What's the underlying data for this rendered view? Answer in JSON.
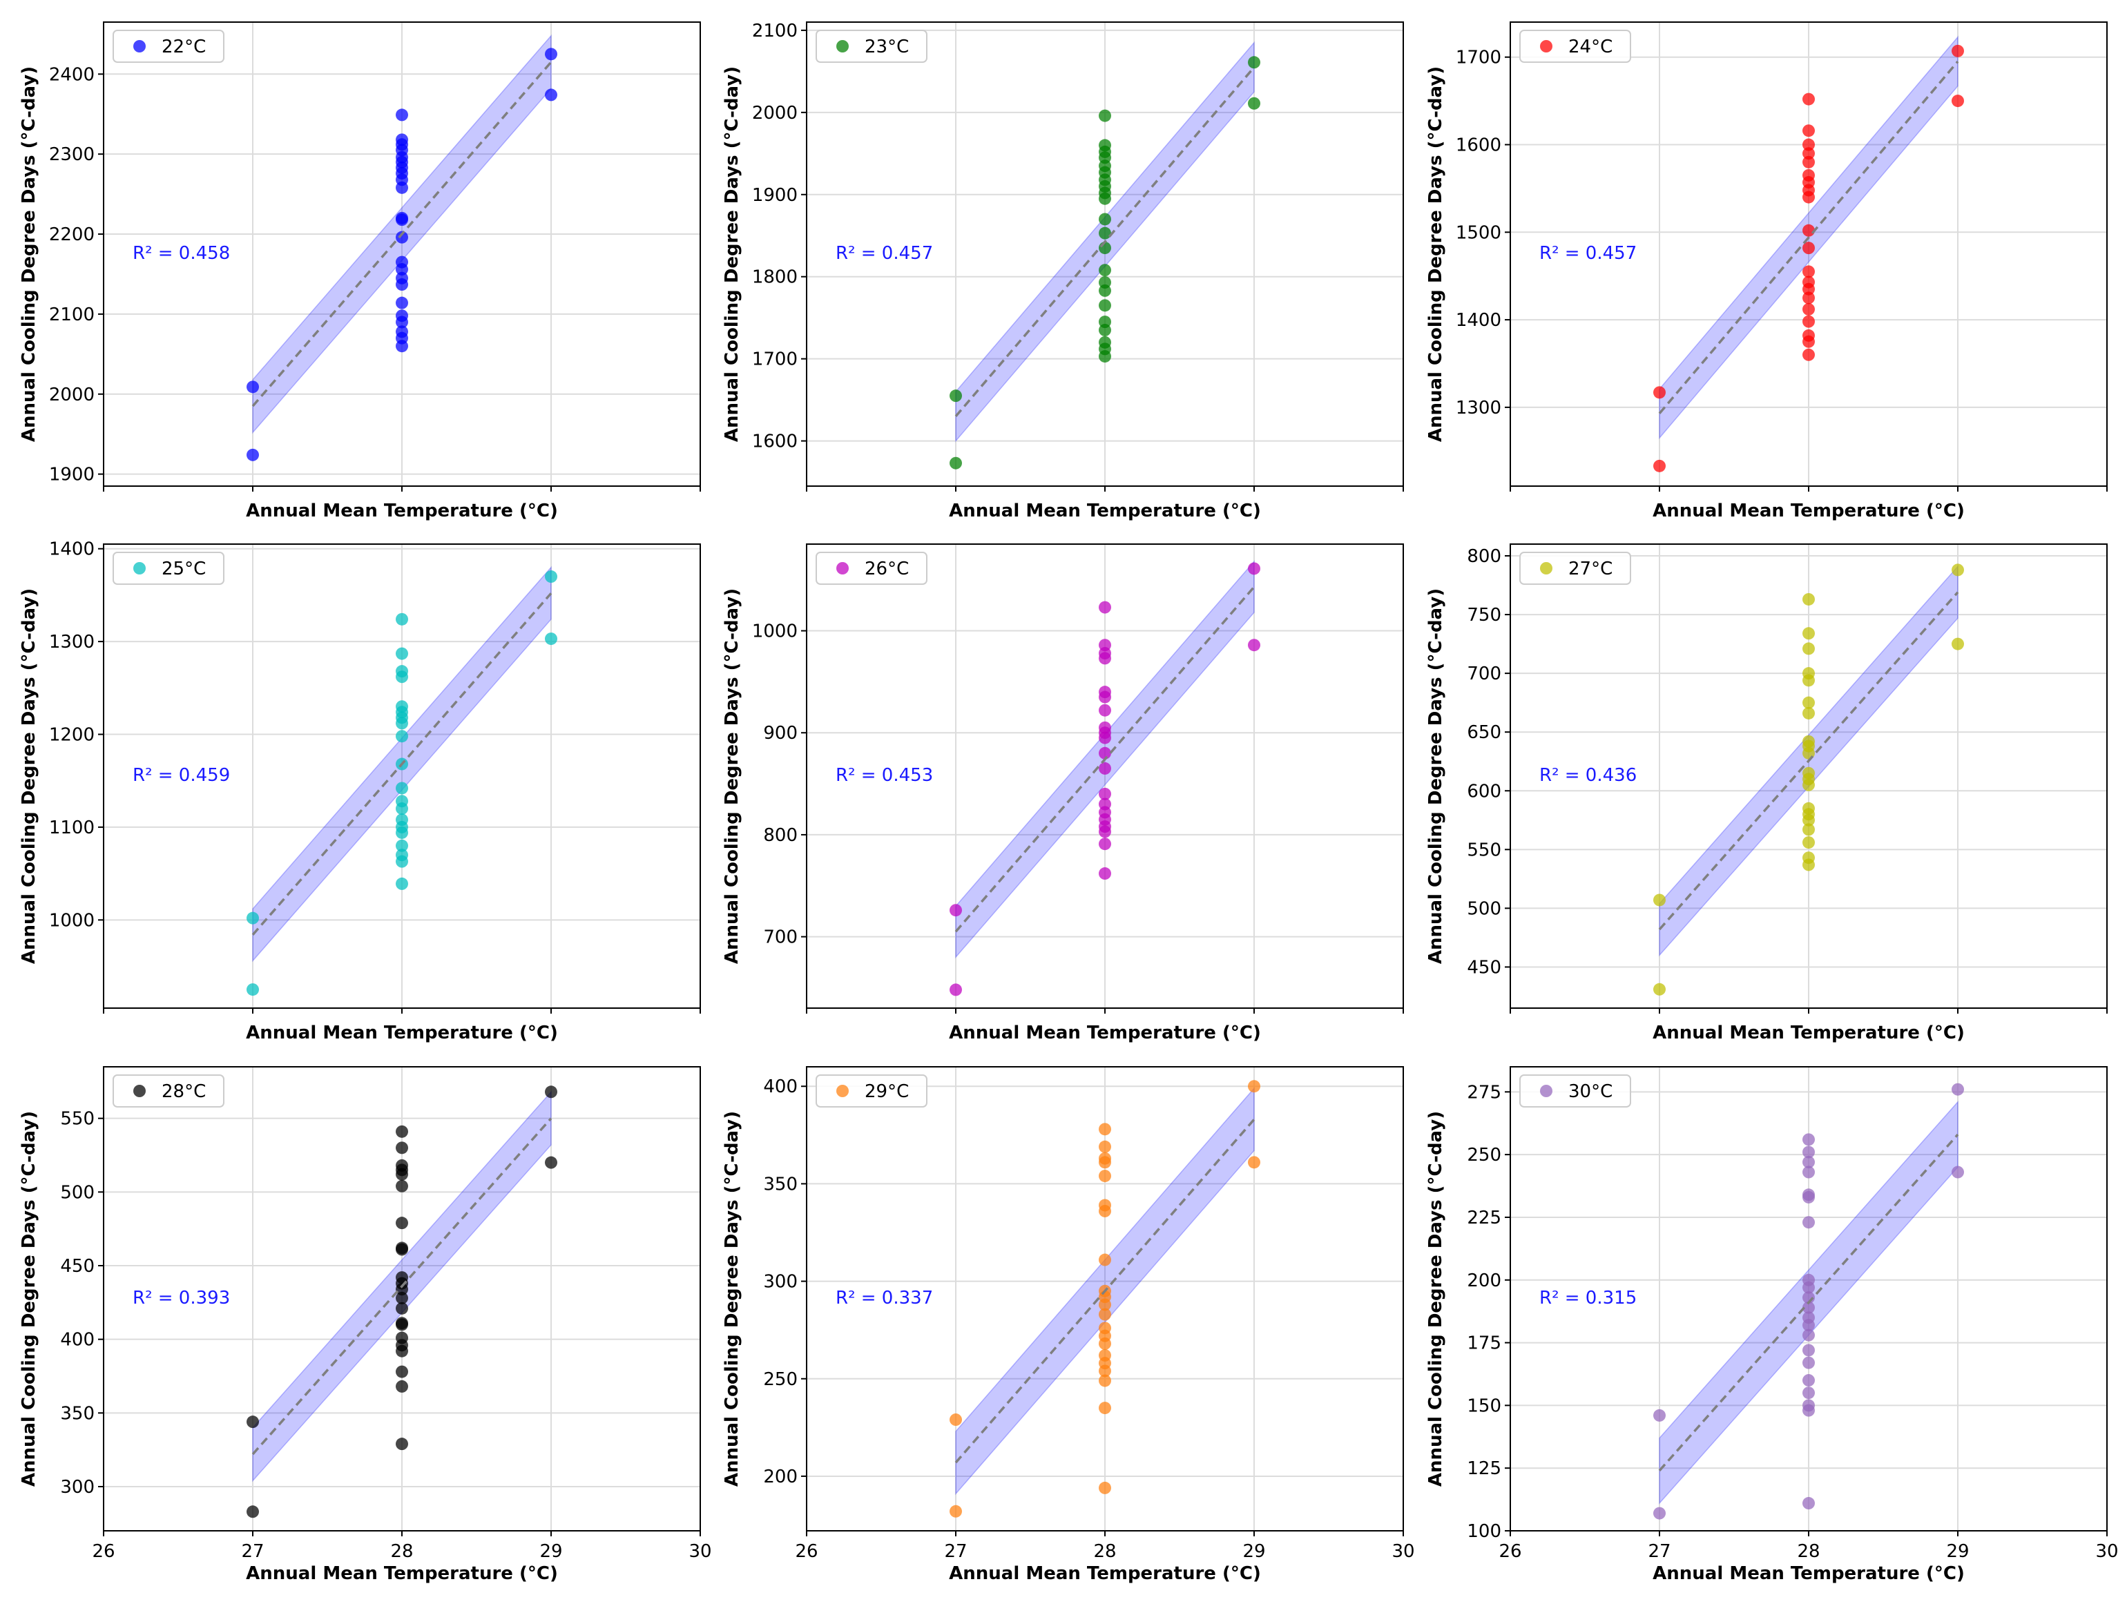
{
  "figure": {
    "layout": "3x3 grid of scatter plots with linear fit and confidence band"
  },
  "chart_data": [
    {
      "type": "scatter",
      "legend": "22°C",
      "color": "#0000ff",
      "r2": "R² = 0.458",
      "xlabel": "Annual Mean Temperature (°C)",
      "ylabel": "Annual Cooling Degree Days (°C-day)",
      "xlim": [
        26,
        30
      ],
      "ylim": [
        1885,
        2465
      ],
      "xticks": [],
      "yticks": [
        1900,
        2000,
        2100,
        2200,
        2300,
        2400
      ],
      "fit": {
        "x": [
          27,
          29
        ],
        "y": [
          1985,
          2415
        ]
      },
      "band_halfwidth": 33,
      "points": [
        [
          27,
          2009
        ],
        [
          27,
          1924
        ],
        [
          29,
          2425
        ],
        [
          29,
          2374
        ],
        [
          28,
          2349
        ],
        [
          28,
          2318
        ],
        [
          28,
          2312
        ],
        [
          28,
          2305
        ],
        [
          28,
          2296
        ],
        [
          28,
          2290
        ],
        [
          28,
          2283
        ],
        [
          28,
          2276
        ],
        [
          28,
          2268
        ],
        [
          28,
          2258
        ],
        [
          28,
          2220
        ],
        [
          28,
          2218
        ],
        [
          28,
          2196
        ],
        [
          28,
          2165
        ],
        [
          28,
          2156
        ],
        [
          28,
          2145
        ],
        [
          28,
          2137
        ],
        [
          28,
          2114
        ],
        [
          28,
          2098
        ],
        [
          28,
          2090
        ],
        [
          28,
          2078
        ],
        [
          28,
          2070
        ],
        [
          28,
          2060
        ]
      ]
    },
    {
      "type": "scatter",
      "legend": "23°C",
      "color": "#008000",
      "r2": "R² = 0.457",
      "xlabel": "Annual Mean Temperature (°C)",
      "ylabel": "Annual Cooling Degree Days (°C-day)",
      "xlim": [
        26,
        30
      ],
      "ylim": [
        1545,
        2110
      ],
      "xticks": [],
      "yticks": [
        1600,
        1700,
        1800,
        1900,
        2000,
        2100
      ],
      "fit": {
        "x": [
          27,
          29
        ],
        "y": [
          1630,
          2055
        ]
      },
      "band_halfwidth": 30,
      "points": [
        [
          27,
          1655
        ],
        [
          27,
          1573
        ],
        [
          29,
          2061
        ],
        [
          29,
          2011
        ],
        [
          28,
          1996
        ],
        [
          28,
          1960
        ],
        [
          28,
          1952
        ],
        [
          28,
          1945
        ],
        [
          28,
          1935
        ],
        [
          28,
          1927
        ],
        [
          28,
          1918
        ],
        [
          28,
          1910
        ],
        [
          28,
          1902
        ],
        [
          28,
          1895
        ],
        [
          28,
          1870
        ],
        [
          28,
          1853
        ],
        [
          28,
          1835
        ],
        [
          28,
          1808
        ],
        [
          28,
          1793
        ],
        [
          28,
          1783
        ],
        [
          28,
          1765
        ],
        [
          28,
          1745
        ],
        [
          28,
          1735
        ],
        [
          28,
          1720
        ],
        [
          28,
          1712
        ],
        [
          28,
          1703
        ]
      ]
    },
    {
      "type": "scatter",
      "legend": "24°C",
      "color": "#ff0000",
      "r2": "R² = 0.457",
      "xlabel": "Annual Mean Temperature (°C)",
      "ylabel": "Annual Cooling Degree Days (°C-day)",
      "xlim": [
        26,
        30
      ],
      "ylim": [
        1210,
        1740
      ],
      "xticks": [],
      "yticks": [
        1300,
        1400,
        1500,
        1600,
        1700
      ],
      "fit": {
        "x": [
          27,
          29
        ],
        "y": [
          1293,
          1695
        ]
      },
      "band_halfwidth": 28,
      "points": [
        [
          27,
          1317
        ],
        [
          27,
          1233
        ],
        [
          29,
          1707
        ],
        [
          29,
          1650
        ],
        [
          28,
          1652
        ],
        [
          28,
          1616
        ],
        [
          28,
          1600
        ],
        [
          28,
          1590
        ],
        [
          28,
          1580
        ],
        [
          28,
          1565
        ],
        [
          28,
          1557
        ],
        [
          28,
          1548
        ],
        [
          28,
          1540
        ],
        [
          28,
          1502
        ],
        [
          28,
          1482
        ],
        [
          28,
          1455
        ],
        [
          28,
          1443
        ],
        [
          28,
          1435
        ],
        [
          28,
          1425
        ],
        [
          28,
          1412
        ],
        [
          28,
          1398
        ],
        [
          28,
          1382
        ],
        [
          28,
          1375
        ],
        [
          28,
          1360
        ]
      ]
    },
    {
      "type": "scatter",
      "legend": "25°C",
      "color": "#00bfbf",
      "r2": "R² = 0.459",
      "xlabel": "Annual Mean Temperature (°C)",
      "ylabel": "Annual Cooling Degree Days (°C-day)",
      "xlim": [
        26,
        30
      ],
      "ylim": [
        905,
        1405
      ],
      "xticks": [],
      "yticks": [
        1000,
        1100,
        1200,
        1300,
        1400
      ],
      "fit": {
        "x": [
          27,
          29
        ],
        "y": [
          984,
          1352
        ]
      },
      "band_halfwidth": 28,
      "points": [
        [
          27,
          1002
        ],
        [
          27,
          925
        ],
        [
          29,
          1370
        ],
        [
          29,
          1303
        ],
        [
          28,
          1324
        ],
        [
          28,
          1287
        ],
        [
          28,
          1268
        ],
        [
          28,
          1262
        ],
        [
          28,
          1230
        ],
        [
          28,
          1224
        ],
        [
          28,
          1218
        ],
        [
          28,
          1212
        ],
        [
          28,
          1198
        ],
        [
          28,
          1168
        ],
        [
          28,
          1142
        ],
        [
          28,
          1128
        ],
        [
          28,
          1120
        ],
        [
          28,
          1108
        ],
        [
          28,
          1100
        ],
        [
          28,
          1094
        ],
        [
          28,
          1080
        ],
        [
          28,
          1070
        ],
        [
          28,
          1063
        ],
        [
          28,
          1039
        ]
      ]
    },
    {
      "type": "scatter",
      "legend": "26°C",
      "color": "#bf00bf",
      "r2": "R² = 0.453",
      "xlabel": "Annual Mean Temperature (°C)",
      "ylabel": "Annual Cooling Degree Days (°C-day)",
      "xlim": [
        26,
        30
      ],
      "ylim": [
        630,
        1085
      ],
      "xticks": [],
      "yticks": [
        700,
        800,
        900,
        1000
      ],
      "fit": {
        "x": [
          27,
          29
        ],
        "y": [
          705,
          1043
        ]
      },
      "band_halfwidth": 25,
      "points": [
        [
          27,
          726
        ],
        [
          27,
          648
        ],
        [
          29,
          1061
        ],
        [
          29,
          986
        ],
        [
          28,
          1023
        ],
        [
          28,
          986
        ],
        [
          28,
          978
        ],
        [
          28,
          973
        ],
        [
          28,
          940
        ],
        [
          28,
          935
        ],
        [
          28,
          922
        ],
        [
          28,
          905
        ],
        [
          28,
          900
        ],
        [
          28,
          895
        ],
        [
          28,
          880
        ],
        [
          28,
          865
        ],
        [
          28,
          840
        ],
        [
          28,
          830
        ],
        [
          28,
          822
        ],
        [
          28,
          815
        ],
        [
          28,
          808
        ],
        [
          28,
          803
        ],
        [
          28,
          791
        ],
        [
          28,
          762
        ]
      ]
    },
    {
      "type": "scatter",
      "legend": "27°C",
      "color": "#bfbf00",
      "r2": "R² = 0.436",
      "xlabel": "Annual Mean Temperature (°C)",
      "ylabel": "Annual Cooling Degree Days (°C-day)",
      "xlim": [
        26,
        30
      ],
      "ylim": [
        415,
        810
      ],
      "xticks": [],
      "yticks": [
        450,
        500,
        550,
        600,
        650,
        700,
        750,
        800
      ],
      "fit": {
        "x": [
          27,
          29
        ],
        "y": [
          482,
          769
        ]
      },
      "band_halfwidth": 22,
      "points": [
        [
          27,
          507
        ],
        [
          27,
          431
        ],
        [
          29,
          788
        ],
        [
          29,
          725
        ],
        [
          28,
          763
        ],
        [
          28,
          734
        ],
        [
          28,
          721
        ],
        [
          28,
          700
        ],
        [
          28,
          694
        ],
        [
          28,
          675
        ],
        [
          28,
          666
        ],
        [
          28,
          642
        ],
        [
          28,
          638
        ],
        [
          28,
          632
        ],
        [
          28,
          615
        ],
        [
          28,
          610
        ],
        [
          28,
          605
        ],
        [
          28,
          585
        ],
        [
          28,
          580
        ],
        [
          28,
          575
        ],
        [
          28,
          567
        ],
        [
          28,
          556
        ],
        [
          28,
          543
        ],
        [
          28,
          537
        ]
      ]
    },
    {
      "type": "scatter",
      "legend": "28°C",
      "color": "#000000",
      "r2": "R² = 0.393",
      "xlabel": "Annual Mean Temperature (°C)",
      "ylabel": "Annual Cooling Degree Days (°C-day)",
      "xlim": [
        26,
        30
      ],
      "ylim": [
        270,
        585
      ],
      "xticks": [
        26,
        27,
        28,
        29,
        30
      ],
      "yticks": [
        300,
        350,
        400,
        450,
        500,
        550
      ],
      "fit": {
        "x": [
          27,
          29
        ],
        "y": [
          322,
          550
        ]
      },
      "band_halfwidth": 18,
      "points": [
        [
          27,
          344
        ],
        [
          27,
          283
        ],
        [
          29,
          568
        ],
        [
          29,
          520
        ],
        [
          28,
          541
        ],
        [
          28,
          530
        ],
        [
          28,
          518
        ],
        [
          28,
          515
        ],
        [
          28,
          512
        ],
        [
          28,
          504
        ],
        [
          28,
          479
        ],
        [
          28,
          462
        ],
        [
          28,
          461
        ],
        [
          28,
          442
        ],
        [
          28,
          438
        ],
        [
          28,
          434
        ],
        [
          28,
          428
        ],
        [
          28,
          421
        ],
        [
          28,
          411
        ],
        [
          28,
          410
        ],
        [
          28,
          401
        ],
        [
          28,
          396
        ],
        [
          28,
          392
        ],
        [
          28,
          378
        ],
        [
          28,
          368
        ],
        [
          28,
          329
        ]
      ]
    },
    {
      "type": "scatter",
      "legend": "29°C",
      "color": "#ff7f0e",
      "r2": "R² = 0.337",
      "xlabel": "Annual Mean Temperature (°C)",
      "ylabel": "Annual Cooling Degree Days (°C-day)",
      "xlim": [
        26,
        30
      ],
      "ylim": [
        172,
        410
      ],
      "xticks": [
        26,
        27,
        28,
        29,
        30
      ],
      "yticks": [
        200,
        250,
        300,
        350,
        400
      ],
      "fit": {
        "x": [
          27,
          29
        ],
        "y": [
          207,
          383
        ]
      },
      "band_halfwidth": 16,
      "points": [
        [
          27,
          229
        ],
        [
          27,
          182
        ],
        [
          29,
          400
        ],
        [
          29,
          361
        ],
        [
          28,
          378
        ],
        [
          28,
          369
        ],
        [
          28,
          363
        ],
        [
          28,
          361
        ],
        [
          28,
          354
        ],
        [
          28,
          339
        ],
        [
          28,
          336
        ],
        [
          28,
          311
        ],
        [
          28,
          295
        ],
        [
          28,
          292
        ],
        [
          28,
          288
        ],
        [
          28,
          283
        ],
        [
          28,
          276
        ],
        [
          28,
          272
        ],
        [
          28,
          268
        ],
        [
          28,
          262
        ],
        [
          28,
          258
        ],
        [
          28,
          254
        ],
        [
          28,
          249
        ],
        [
          28,
          235
        ],
        [
          28,
          194
        ]
      ]
    },
    {
      "type": "scatter",
      "legend": "30°C",
      "color": "#9467bd",
      "r2": "R² = 0.315",
      "xlabel": "Annual Mean Temperature (°C)",
      "ylabel": "Annual Cooling Degree Days (°C-day)",
      "xlim": [
        26,
        30
      ],
      "ylim": [
        100,
        285
      ],
      "xticks": [
        26,
        27,
        28,
        29,
        30
      ],
      "yticks": [
        100,
        125,
        150,
        175,
        200,
        225,
        250,
        275
      ],
      "fit": {
        "x": [
          27,
          29
        ],
        "y": [
          124,
          258
        ]
      },
      "band_halfwidth": 13,
      "points": [
        [
          27,
          146
        ],
        [
          27,
          107
        ],
        [
          29,
          276
        ],
        [
          29,
          243
        ],
        [
          28,
          256
        ],
        [
          28,
          251
        ],
        [
          28,
          247
        ],
        [
          28,
          243
        ],
        [
          28,
          234
        ],
        [
          28,
          233
        ],
        [
          28,
          223
        ],
        [
          28,
          200
        ],
        [
          28,
          197
        ],
        [
          28,
          193
        ],
        [
          28,
          189
        ],
        [
          28,
          185
        ],
        [
          28,
          182
        ],
        [
          28,
          178
        ],
        [
          28,
          172
        ],
        [
          28,
          167
        ],
        [
          28,
          160
        ],
        [
          28,
          155
        ],
        [
          28,
          150
        ],
        [
          28,
          148
        ],
        [
          28,
          111
        ]
      ]
    }
  ]
}
